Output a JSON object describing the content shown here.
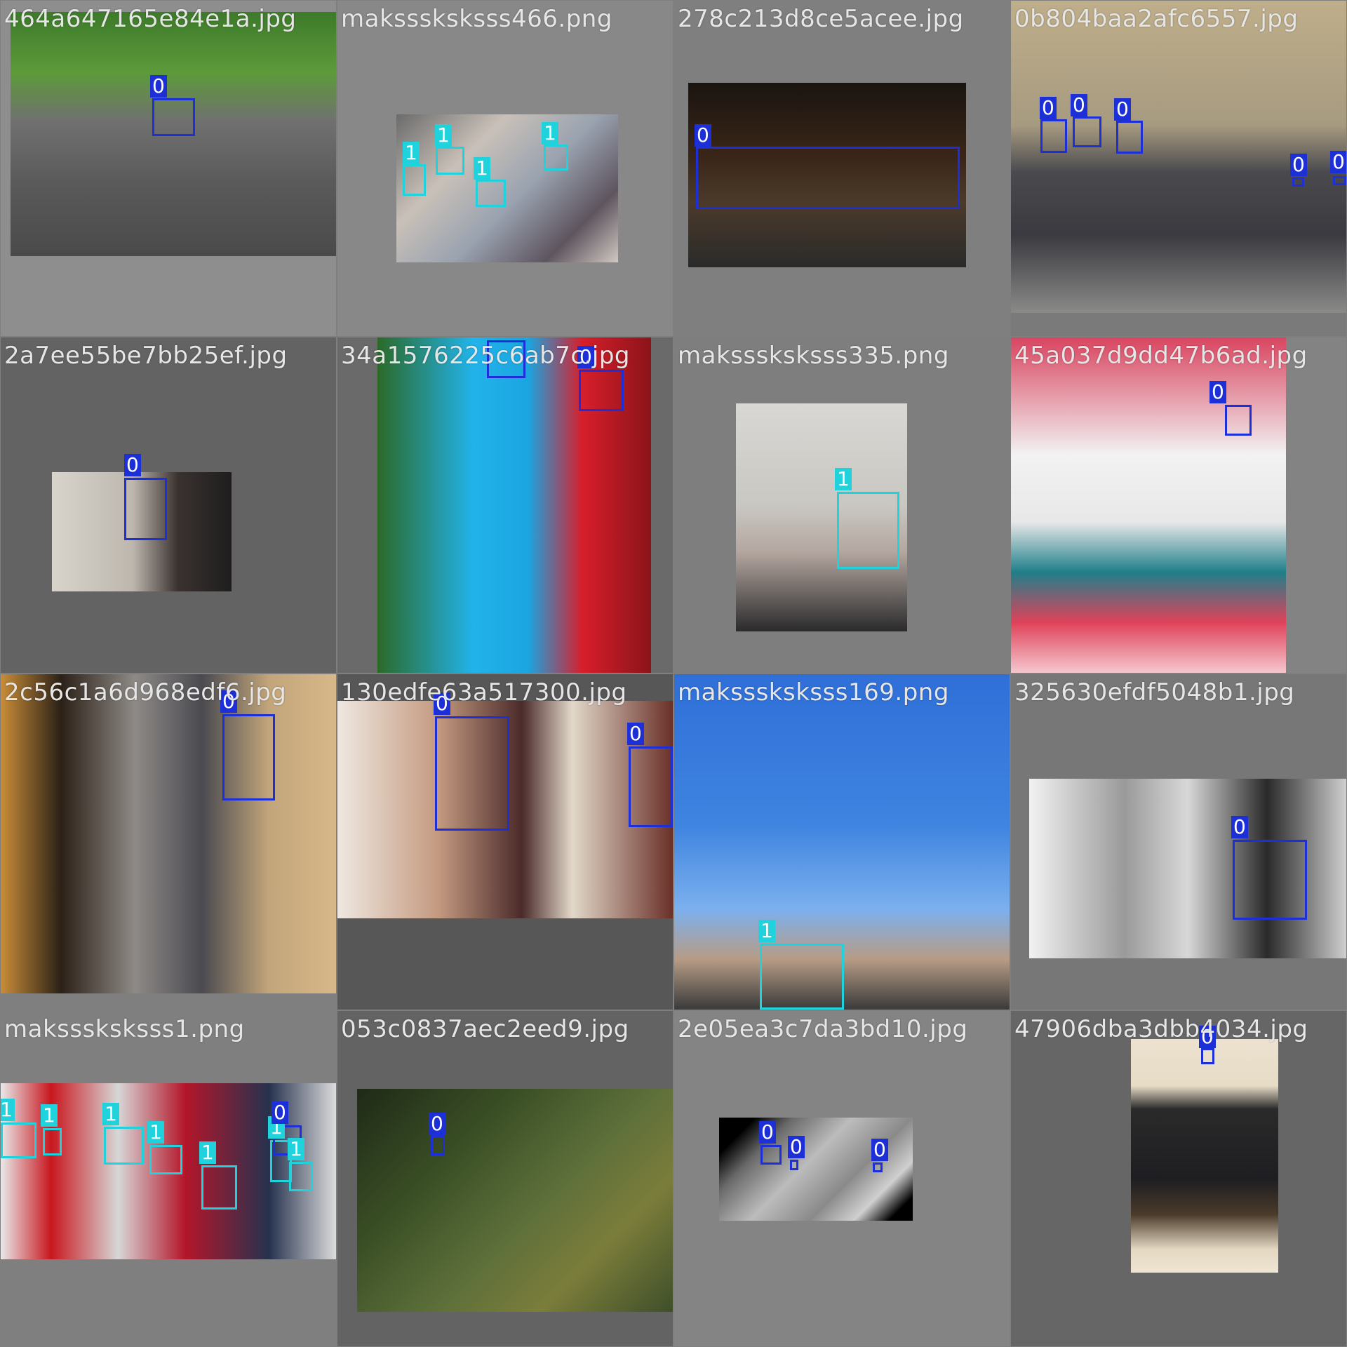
{
  "class_colors": {
    "0": "#1d2fd6",
    "1": "#1fd2dc"
  },
  "tiles": [
    {
      "filename": "464a647165e84e1a.jpg",
      "labels": [
        "0"
      ]
    },
    {
      "filename": "maksssksksss466.png",
      "labels": [
        "1",
        "1",
        "1",
        "1"
      ]
    },
    {
      "filename": "278c213d8ce5acee.jpg",
      "labels": [
        "0"
      ]
    },
    {
      "filename": "0b804baa2afc6557.jpg",
      "labels": [
        "0",
        "0",
        "0",
        "0",
        "0"
      ]
    },
    {
      "filename": "2a7ee55be7bb25ef.jpg",
      "labels": [
        "0"
      ]
    },
    {
      "filename": "34a1576225c6ab7c.jpg",
      "labels": [
        "0",
        "0"
      ]
    },
    {
      "filename": "maksssksksss335.png",
      "labels": [
        "1"
      ]
    },
    {
      "filename": "45a037d9dd47b6ad.jpg",
      "labels": [
        "0"
      ]
    },
    {
      "filename": "2c56c1a6d968edf6.jpg",
      "labels": [
        "0"
      ]
    },
    {
      "filename": "130edfe63a517300.jpg",
      "labels": [
        "0",
        "0"
      ]
    },
    {
      "filename": "maksssksksss169.png",
      "labels": [
        "1"
      ]
    },
    {
      "filename": "325630efdf5048b1.jpg",
      "labels": [
        "0"
      ]
    },
    {
      "filename": "maksssksksss1.png",
      "labels": [
        "1",
        "1",
        "1",
        "1",
        "1",
        "1",
        "0",
        "1"
      ]
    },
    {
      "filename": "053c0837aec2eed9.jpg",
      "labels": [
        "0"
      ]
    },
    {
      "filename": "2e05ea3c7da3bd10.jpg",
      "labels": [
        "0",
        "0",
        "0"
      ]
    },
    {
      "filename": "47906dba3dbb4034.jpg",
      "labels": [
        "0"
      ]
    }
  ]
}
